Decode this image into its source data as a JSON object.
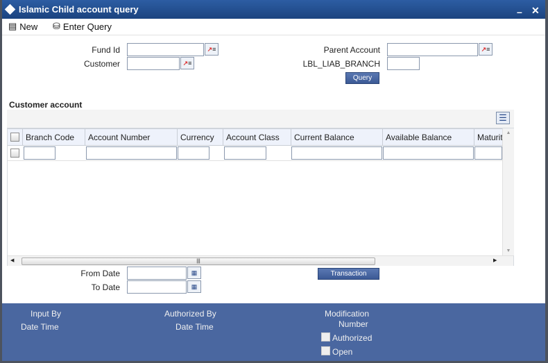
{
  "window": {
    "title": "Islamic Child account query"
  },
  "toolbar": {
    "new_label": "New",
    "enter_query_label": "Enter Query"
  },
  "form": {
    "fund_id_label": "Fund Id",
    "fund_id_value": "",
    "customer_label": "Customer",
    "customer_value": "",
    "parent_account_label": "Parent Account",
    "parent_account_value": "",
    "liab_branch_label": "LBL_LIAB_BRANCH",
    "liab_branch_value": "",
    "query_button": "Query"
  },
  "customer_account": {
    "section_title": "Customer account",
    "columns": [
      "Branch Code",
      "Account Number",
      "Currency",
      "Account Class",
      "Current Balance",
      "Available Balance",
      "Maturit"
    ],
    "rows": [
      [
        "",
        "",
        "",
        "",
        "",
        "",
        ""
      ]
    ]
  },
  "dates": {
    "from_date_label": "From Date",
    "from_date_value": "",
    "to_date_label": "To Date",
    "to_date_value": "",
    "transaction_button": "Transaction"
  },
  "footer": {
    "input_by": "Input By",
    "date_time_1": "Date Time",
    "authorized_by": "Authorized By",
    "date_time_2": "Date Time",
    "modification": "Modification",
    "number": "Number",
    "authorized": "Authorized",
    "open": "Open"
  }
}
